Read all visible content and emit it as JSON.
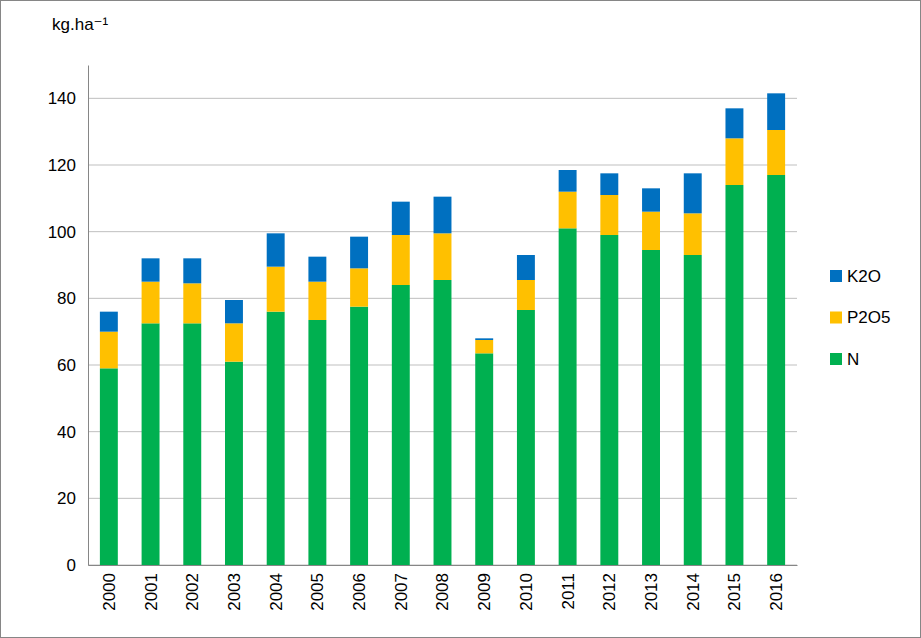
{
  "chart_data": {
    "type": "bar",
    "stacked": true,
    "y_label": "kg.ha⁻¹",
    "categories": [
      "2000",
      "2001",
      "2002",
      "2003",
      "2004",
      "2005",
      "2006",
      "2007",
      "2008",
      "2009",
      "2010",
      "2011",
      "2012",
      "2013",
      "2014",
      "2015",
      "2016"
    ],
    "series": [
      {
        "name": "N",
        "color": "#00b050",
        "values": [
          59,
          72.5,
          72.5,
          61,
          76,
          73.5,
          77.5,
          84,
          85.5,
          63.5,
          76.5,
          101,
          99,
          94.5,
          93,
          114,
          117
        ]
      },
      {
        "name": "P2O5",
        "color": "#ffc000",
        "values": [
          11,
          12.5,
          12,
          11.5,
          13.5,
          11.5,
          11.5,
          15,
          14,
          4,
          9,
          11,
          12,
          11.5,
          12.5,
          14,
          13.5
        ]
      },
      {
        "name": "K2O",
        "color": "#0070c0",
        "values": [
          6,
          7,
          7.5,
          7,
          10,
          7.5,
          9.5,
          10,
          11,
          0.5,
          7.5,
          6.5,
          6.5,
          7,
          12,
          9,
          11
        ]
      }
    ],
    "ylim": [
      0,
      150
    ],
    "yticks": [
      0,
      20,
      40,
      60,
      80,
      100,
      120,
      140
    ],
    "grid": true,
    "legend": "right"
  }
}
